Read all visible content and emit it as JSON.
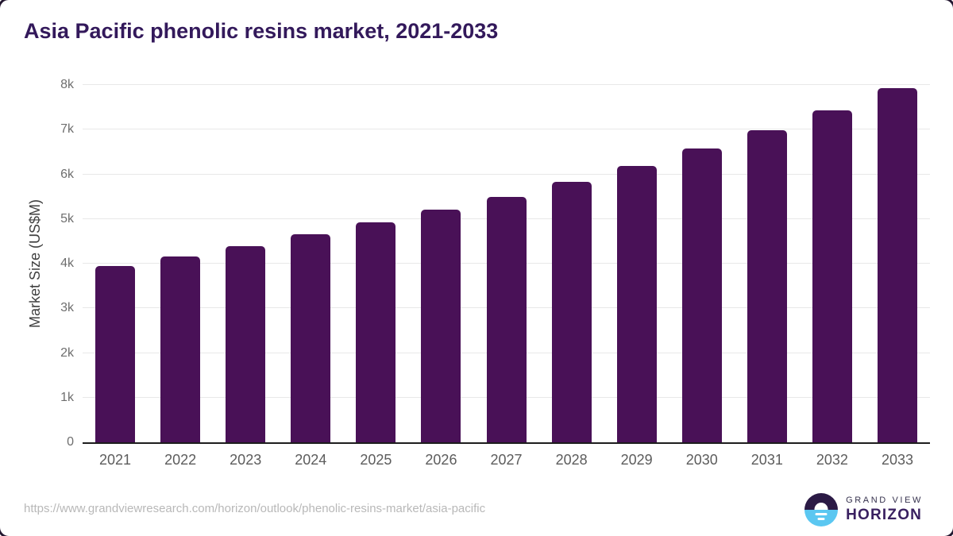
{
  "title": "Asia Pacific phenolic resins market, 2021-2033",
  "source_url": "https://www.grandviewresearch.com/horizon/outlook/phenolic-resins-market/asia-pacific",
  "logo": {
    "line1": "GRAND VIEW",
    "line2": "HORIZON"
  },
  "chart_data": {
    "type": "bar",
    "title": "Asia Pacific phenolic resins market, 2021-2033",
    "categories": [
      "2021",
      "2022",
      "2023",
      "2024",
      "2025",
      "2026",
      "2027",
      "2028",
      "2029",
      "2030",
      "2031",
      "2032",
      "2033"
    ],
    "values": [
      3950,
      4160,
      4390,
      4660,
      4920,
      5210,
      5490,
      5830,
      6190,
      6580,
      6990,
      7430,
      7930
    ],
    "xlabel": "",
    "ylabel": "Market Size (US$M)",
    "ylim": [
      0,
      8000
    ],
    "yticks": [
      {
        "value": 0,
        "label": "0"
      },
      {
        "value": 1000,
        "label": "1k"
      },
      {
        "value": 2000,
        "label": "2k"
      },
      {
        "value": 3000,
        "label": "3k"
      },
      {
        "value": 4000,
        "label": "4k"
      },
      {
        "value": 5000,
        "label": "5k"
      },
      {
        "value": 6000,
        "label": "6k"
      },
      {
        "value": 7000,
        "label": "7k"
      },
      {
        "value": 8000,
        "label": "8k"
      }
    ],
    "grid": true,
    "legend": false,
    "bar_color": "#491157"
  },
  "colors": {
    "bar": "#491157",
    "title": "#33195b",
    "grid": "#e8e8e8",
    "axis": "#1d1d1d",
    "tick_label": "#6e6e6e",
    "x_label": "#5c5c5c",
    "axis_title": "#3f3f3f",
    "url": "#b8b8b8",
    "logo_dark": "#2b1a45",
    "logo_blue": "#5bc7f1",
    "logo_text_top": "#36324e",
    "logo_text_bottom": "#392060",
    "border": "#241831"
  }
}
